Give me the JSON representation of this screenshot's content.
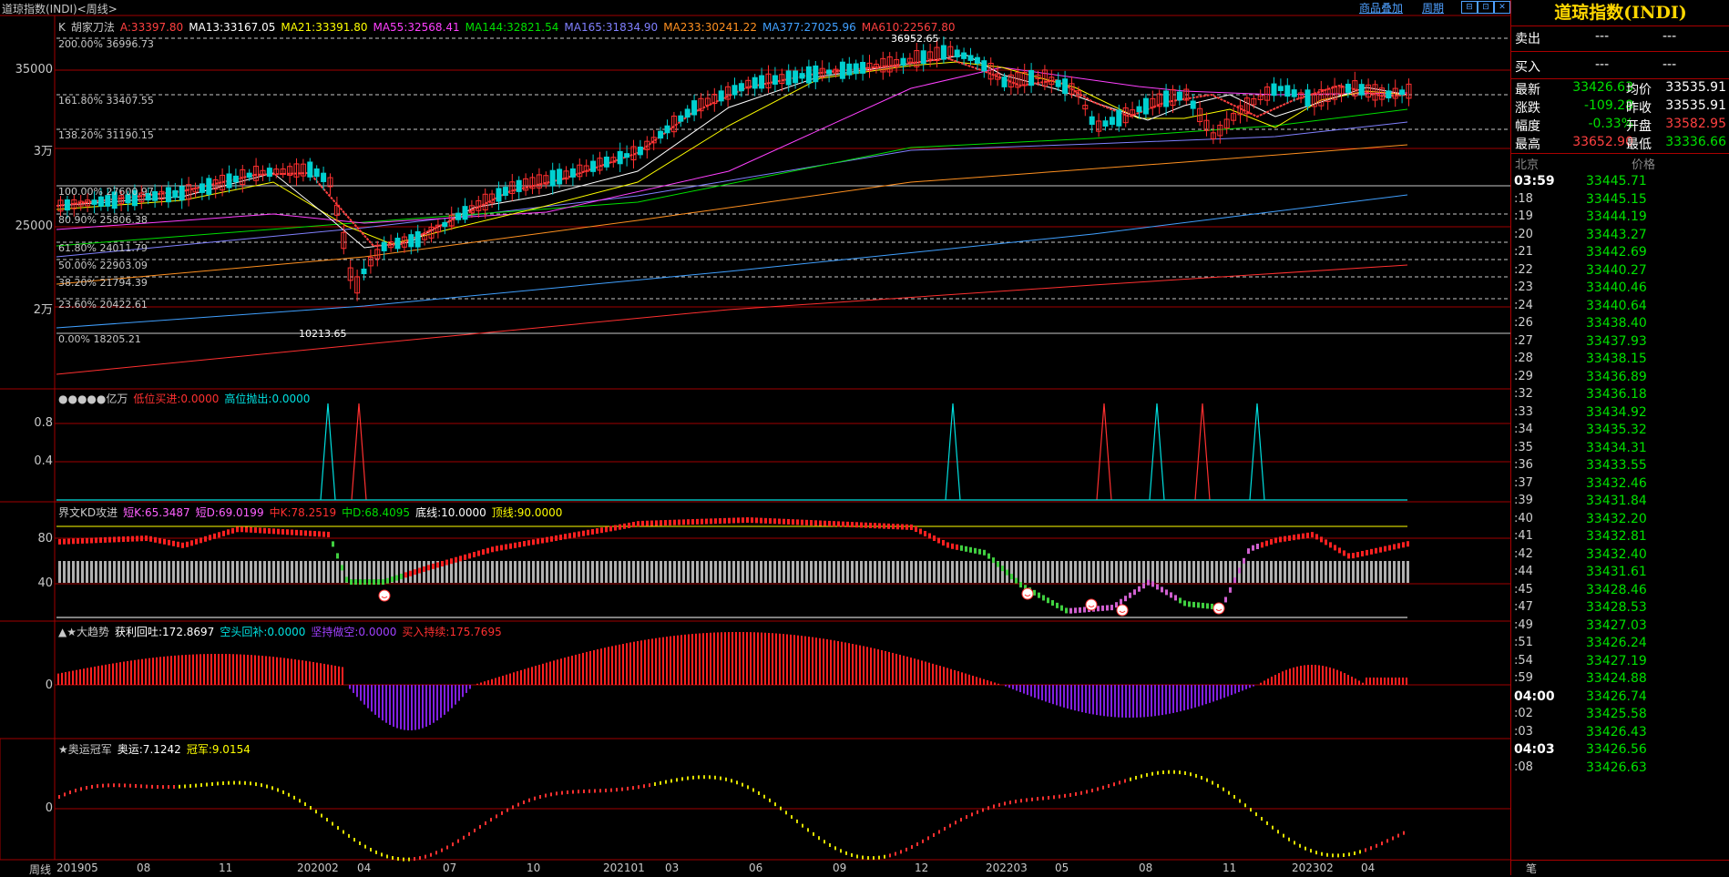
{
  "header": {
    "title": "道琼指数(INDI)<周线>",
    "links": [
      "商品叠加",
      "周期"
    ],
    "win_buttons": [
      "⊟",
      "⊡",
      "✕"
    ]
  },
  "main_legend": {
    "k": "K",
    "method": "胡家刀法",
    "items": [
      {
        "text": "A:33397.80",
        "color": "#ff4040"
      },
      {
        "text": "MA13:33167.05",
        "color": "#ffffff"
      },
      {
        "text": "MA21:33391.80",
        "color": "#ffff00"
      },
      {
        "text": "MA55:32568.41",
        "color": "#ff40ff"
      },
      {
        "text": "MA144:32821.54",
        "color": "#00e000"
      },
      {
        "text": "MA165:31834.90",
        "color": "#8080ff"
      },
      {
        "text": "MA233:30241.22",
        "color": "#ff9020"
      },
      {
        "text": "MA377:27025.96",
        "color": "#40a0ff"
      },
      {
        "text": "MA610:22567.80",
        "color": "#ff4040"
      }
    ]
  },
  "main_yaxis": [
    "35000",
    "3万",
    "25000",
    "2万"
  ],
  "fib_levels": [
    "200.00% 36996.73",
    "161.80% 33407.55",
    "138.20% 31190.15",
    "100.00% 27600.97",
    "80.90% 25806.38",
    "61.80% 24011.79",
    "50.00% 22903.09",
    "38.20% 21794.39",
    "23.60% 20422.61",
    "0.00% 18205.21"
  ],
  "price_marks": {
    "high": "36952.65",
    "low": "10213.65"
  },
  "ind1": {
    "title": "●●●●●亿万",
    "items": [
      {
        "text": "低位买进:0.0000",
        "color": "#ff3030"
      },
      {
        "text": "高位抛出:0.0000",
        "color": "#00e0e0"
      }
    ],
    "yaxis": [
      "0.8",
      "0.4"
    ]
  },
  "ind2": {
    "title": "界文KD攻进",
    "items": [
      {
        "text": "短K:65.3487",
        "color": "#ff60ff"
      },
      {
        "text": "短D:69.0199",
        "color": "#ff60ff"
      },
      {
        "text": "中K:78.2519",
        "color": "#ff3030"
      },
      {
        "text": "中D:68.4095",
        "color": "#00e000"
      },
      {
        "text": "底线:10.0000",
        "color": "#ffffff"
      },
      {
        "text": "顶线:90.0000",
        "color": "#ffff00"
      }
    ],
    "yaxis": [
      "80",
      "40"
    ]
  },
  "ind3": {
    "title": "▲★大趋势",
    "items": [
      {
        "text": "获利回吐:172.8697",
        "color": "#ffffff"
      },
      {
        "text": "空头回补:0.0000",
        "color": "#00e0e0"
      },
      {
        "text": "坚持做空:0.0000",
        "color": "#a040ff"
      },
      {
        "text": "买入持续:175.7695",
        "color": "#ff3030"
      }
    ],
    "yaxis": [
      "0"
    ]
  },
  "ind4": {
    "title": "★奥运冠军",
    "items": [
      {
        "text": "奥运:7.1242",
        "color": "#ffffff"
      },
      {
        "text": "冠军:9.0154",
        "color": "#ffff00"
      }
    ],
    "yaxis": [
      "0"
    ]
  },
  "xaxis": {
    "label": "周线",
    "ticks": [
      "201905",
      "08",
      "11",
      "202002",
      "04",
      "07",
      "10",
      "202101",
      "03",
      "06",
      "09",
      "12",
      "202203",
      "05",
      "08",
      "11",
      "202302",
      "04"
    ]
  },
  "quote": {
    "title": "道琼指数(INDI)",
    "sell_label": "卖出",
    "sell_val": "---",
    "sell_vol": "---",
    "buy_label": "买入",
    "buy_val": "---",
    "buy_vol": "---",
    "rows": [
      {
        "l1": "最新",
        "v1": "33426.63",
        "c1": "#00e000",
        "l2": "均价",
        "v2": "33535.91",
        "c2": "#ffffff"
      },
      {
        "l1": "涨跌",
        "v1": "-109.28",
        "c1": "#00e000",
        "l2": "昨收",
        "v2": "33535.91",
        "c2": "#ffffff"
      },
      {
        "l1": "幅度",
        "v1": "-0.33%",
        "c1": "#00e000",
        "l2": "开盘",
        "v2": "33582.95",
        "c2": "#ff4040"
      },
      {
        "l1": "最高",
        "v1": "33652.90",
        "c1": "#ff4040",
        "l2": "最低",
        "v2": "33336.66",
        "c2": "#00e000"
      }
    ],
    "ticks_header": {
      "time": "北京",
      "price": "价格"
    },
    "ticks": [
      {
        "t": "03:59",
        "p": "33445.71",
        "bold": true
      },
      {
        "t": ":18",
        "p": "33445.15"
      },
      {
        "t": ":19",
        "p": "33444.19"
      },
      {
        "t": ":20",
        "p": "33443.27"
      },
      {
        "t": ":21",
        "p": "33442.69"
      },
      {
        "t": ":22",
        "p": "33440.27"
      },
      {
        "t": ":23",
        "p": "33440.46"
      },
      {
        "t": ":24",
        "p": "33440.64"
      },
      {
        "t": ":26",
        "p": "33438.40"
      },
      {
        "t": ":27",
        "p": "33437.93"
      },
      {
        "t": ":28",
        "p": "33438.15"
      },
      {
        "t": ":29",
        "p": "33436.89"
      },
      {
        "t": ":32",
        "p": "33436.18"
      },
      {
        "t": ":33",
        "p": "33434.92"
      },
      {
        "t": ":34",
        "p": "33435.32"
      },
      {
        "t": ":35",
        "p": "33434.31"
      },
      {
        "t": ":36",
        "p": "33433.55"
      },
      {
        "t": ":37",
        "p": "33432.46"
      },
      {
        "t": ":39",
        "p": "33431.84"
      },
      {
        "t": ":40",
        "p": "33432.20"
      },
      {
        "t": ":41",
        "p": "33432.81"
      },
      {
        "t": ":42",
        "p": "33432.40"
      },
      {
        "t": ":44",
        "p": "33431.61"
      },
      {
        "t": ":45",
        "p": "33428.46"
      },
      {
        "t": ":47",
        "p": "33428.53"
      },
      {
        "t": ":49",
        "p": "33427.03"
      },
      {
        "t": ":51",
        "p": "33426.24"
      },
      {
        "t": ":54",
        "p": "33427.19"
      },
      {
        "t": ":59",
        "p": "33424.88"
      },
      {
        "t": "04:00",
        "p": "33426.74",
        "bold": true
      },
      {
        "t": ":02",
        "p": "33425.58"
      },
      {
        "t": ":03",
        "p": "33426.43"
      },
      {
        "t": "04:03",
        "p": "33426.56",
        "bold": true
      },
      {
        "t": ":08",
        "p": "33426.63"
      }
    ],
    "footer": "笔"
  }
}
